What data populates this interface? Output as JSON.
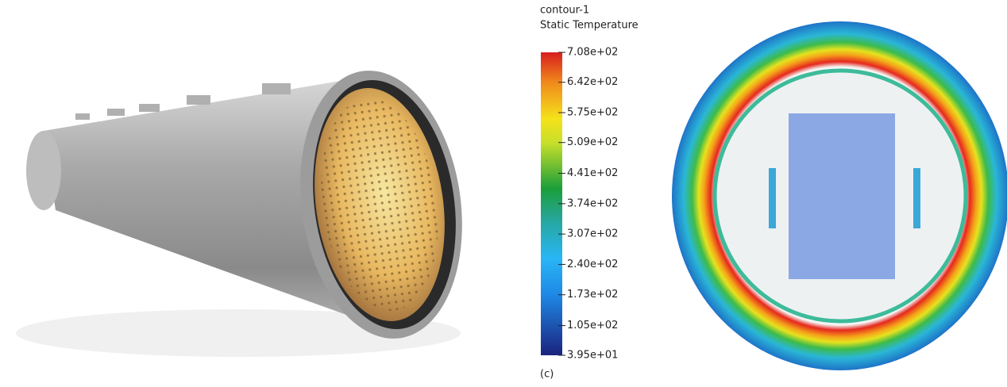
{
  "legend": {
    "title": "contour-1",
    "subtitle": "Static Temperature",
    "range": [
      39.5,
      708
    ],
    "ticks": [
      {
        "value": 708,
        "label": "7.08e+02"
      },
      {
        "value": 642,
        "label": "6.42e+02"
      },
      {
        "value": 575,
        "label": "5.75e+02"
      },
      {
        "value": 509,
        "label": "5.09e+02"
      },
      {
        "value": 441,
        "label": "4.41e+02"
      },
      {
        "value": 374,
        "label": "3.74e+02"
      },
      {
        "value": 307,
        "label": "3.07e+02"
      },
      {
        "value": 240,
        "label": "2.40e+02"
      },
      {
        "value": 173,
        "label": "1.73e+02"
      },
      {
        "value": 105,
        "label": "1.05e+02"
      },
      {
        "value": 39.5,
        "label": "3.95e+01"
      }
    ]
  },
  "panel_label": "(c)"
}
